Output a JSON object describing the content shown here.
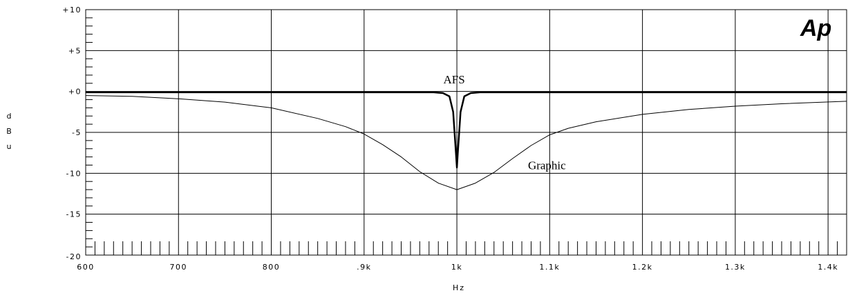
{
  "logo": "Ap",
  "chart_data": {
    "type": "line",
    "xlabel": "Hz",
    "ylabel": "dBu",
    "xlim": [
      600,
      1420
    ],
    "ylim": [
      -20,
      10
    ],
    "grid": true,
    "x_ticks": [
      {
        "value": 600,
        "label": "600"
      },
      {
        "value": 700,
        "label": "700"
      },
      {
        "value": 800,
        "label": "800"
      },
      {
        "value": 900,
        "label": ".9k"
      },
      {
        "value": 1000,
        "label": "1k"
      },
      {
        "value": 1100,
        "label": "1.1k"
      },
      {
        "value": 1200,
        "label": "1.2k"
      },
      {
        "value": 1300,
        "label": "1.3k"
      },
      {
        "value": 1400,
        "label": "1.4k"
      }
    ],
    "y_ticks": [
      {
        "value": 10,
        "label": "+10"
      },
      {
        "value": 5,
        "label": "+5"
      },
      {
        "value": 0,
        "label": "+0"
      },
      {
        "value": -5,
        "label": "-5"
      },
      {
        "value": -10,
        "label": "-10"
      },
      {
        "value": -15,
        "label": "-15"
      },
      {
        "value": -20,
        "label": "-20"
      }
    ],
    "annotations": [
      {
        "text": "AFS",
        "x": 1000,
        "y": 1.5
      },
      {
        "text": "Graphic",
        "x": 1100,
        "y": -9
      }
    ],
    "series": [
      {
        "stroke_width": 2.5,
        "x": [
          600,
          975,
          985,
          992,
          996,
          999,
          1000,
          1001,
          1004,
          1008,
          1015,
          1025,
          1420
        ],
        "y": [
          -0.1,
          -0.1,
          -0.2,
          -0.6,
          -2.5,
          -7.5,
          -9.3,
          -7.5,
          -2.5,
          -0.6,
          -0.2,
          -0.1,
          -0.1
        ]
      },
      {
        "stroke_width": 1,
        "x": [
          600,
          650,
          700,
          750,
          800,
          850,
          880,
          900,
          920,
          940,
          960,
          980,
          1000,
          1020,
          1040,
          1060,
          1080,
          1100,
          1120,
          1150,
          1200,
          1250,
          1300,
          1350,
          1420
        ],
        "y": [
          -0.5,
          -0.6,
          -0.9,
          -1.3,
          -2.0,
          -3.3,
          -4.3,
          -5.2,
          -6.5,
          -8.0,
          -9.8,
          -11.2,
          -12.0,
          -11.2,
          -9.9,
          -8.2,
          -6.6,
          -5.3,
          -4.5,
          -3.7,
          -2.8,
          -2.2,
          -1.8,
          -1.5,
          -1.2
        ]
      }
    ]
  }
}
